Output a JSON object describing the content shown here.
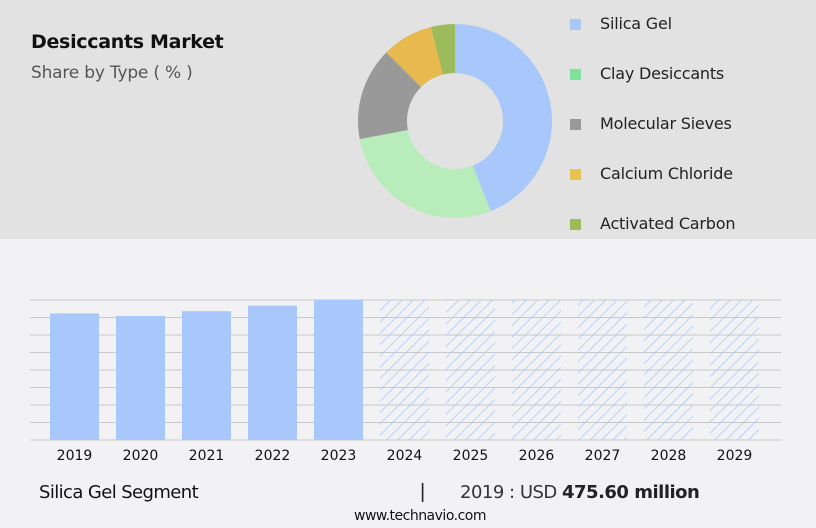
{
  "header": {
    "title": "Desiccants Market",
    "subtitle": "Share by Type ( % )"
  },
  "legend": [
    {
      "label": "Silica Gel",
      "color": "#a8c8fc"
    },
    {
      "label": "Clay Desiccants",
      "color": "#7ee39a"
    },
    {
      "label": "Molecular Sieves",
      "color": "#999999"
    },
    {
      "label": "Calcium Chloride",
      "color": "#e8c24f"
    },
    {
      "label": "Activated Carbon",
      "color": "#9cbb5a"
    }
  ],
  "footer": {
    "segment": "Silica Gel Segment",
    "separator": "|",
    "value_prefix": "2019 : USD ",
    "value_bold": "475.60 million",
    "url": "www.technavio.com"
  },
  "colors": {
    "bar_actual": "#a8c8fc",
    "bar_forecast_hatch": "#a8c8fc",
    "gridline": "#c8c8c8",
    "top_bg": "#e2e2e2",
    "bottom_bg": "#f2f2f4"
  },
  "chart_data": [
    {
      "type": "pie",
      "title": "Desiccants Market",
      "subtitle": "Share by Type ( % )",
      "donut": true,
      "categories": [
        "Silica Gel",
        "Clay Desiccants",
        "Molecular Sieves",
        "Calcium Chloride",
        "Activated Carbon"
      ],
      "values": [
        44,
        28,
        15.5,
        8.5,
        4
      ],
      "colors": [
        "#a8c8fc",
        "#b8edbb",
        "#999999",
        "#e8b94f",
        "#9cbb5a"
      ],
      "legend_position": "right"
    },
    {
      "type": "bar",
      "title": "Silica Gel Segment",
      "categories": [
        "2019",
        "2020",
        "2021",
        "2022",
        "2023",
        "2024",
        "2025",
        "2026",
        "2027",
        "2028",
        "2029"
      ],
      "values": [
        475.6,
        466,
        484,
        505,
        526,
        null,
        null,
        null,
        null,
        null,
        null
      ],
      "forecast": [
        false,
        false,
        false,
        false,
        false,
        true,
        true,
        true,
        true,
        true,
        true
      ],
      "annotation": "2019 : USD 475.60 million",
      "xlabel": "",
      "ylabel": "",
      "grid": true,
      "gridlines": 9
    }
  ]
}
